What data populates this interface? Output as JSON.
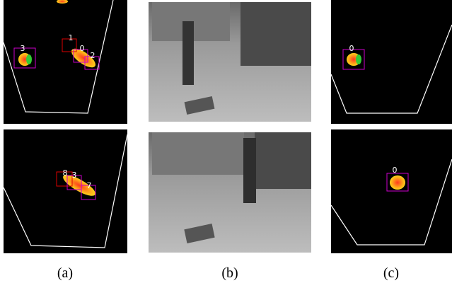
{
  "figure": {
    "captions": [
      "(a)",
      "(b)",
      "(c)"
    ],
    "a_top_labels": [
      "3",
      "1",
      "0",
      "2"
    ],
    "a_bottom_labels": [
      "8",
      "3",
      "7"
    ],
    "c_top_labels": [
      "0"
    ],
    "c_bottom_labels": [
      "0"
    ]
  }
}
